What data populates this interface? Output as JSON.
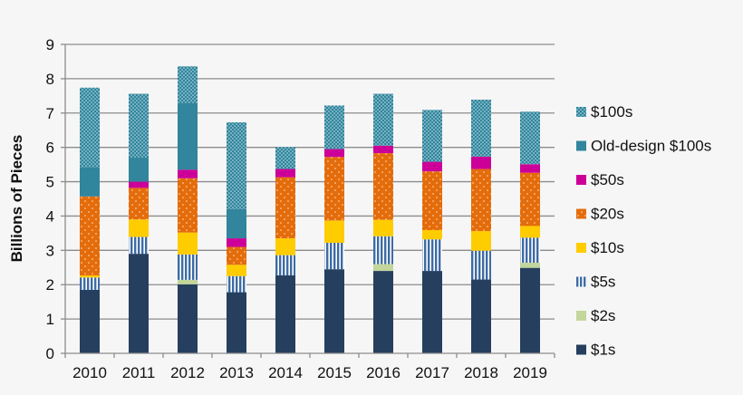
{
  "chart_data": {
    "type": "bar",
    "stacked": true,
    "title": "",
    "xlabel": "",
    "ylabel": "Billions of Pieces",
    "ylim": [
      0,
      9
    ],
    "yticks": [
      "0",
      "1",
      "2",
      "3",
      "4",
      "5",
      "6",
      "7",
      "8",
      "9"
    ],
    "grid": true,
    "legend_position": "right",
    "categories": [
      "2010",
      "2011",
      "2012",
      "2013",
      "2014",
      "2015",
      "2016",
      "2017",
      "2018",
      "2019"
    ],
    "series": [
      {
        "name": "$1s",
        "color": "#263f5e",
        "pattern": "solid",
        "values": [
          1.85,
          2.9,
          2.01,
          1.78,
          2.27,
          2.45,
          2.4,
          2.4,
          2.15,
          2.49
        ]
      },
      {
        "name": "$2s",
        "color": "#c3d69b",
        "pattern": "solid",
        "values": [
          0,
          0,
          0.13,
          0,
          0,
          0,
          0.2,
          0,
          0,
          0.15
        ]
      },
      {
        "name": "$5s",
        "color": "#3e6ba4",
        "pattern": "vertical-stripes",
        "values": [
          0.36,
          0.49,
          0.74,
          0.47,
          0.59,
          0.77,
          0.81,
          0.92,
          0.84,
          0.73
        ]
      },
      {
        "name": "$10s",
        "color": "#ffcc00",
        "pattern": "solid",
        "values": [
          0.06,
          0.51,
          0.64,
          0.33,
          0.49,
          0.65,
          0.48,
          0.27,
          0.57,
          0.34
        ]
      },
      {
        "name": "$20s",
        "color": "#e46c0a",
        "pattern": "dots",
        "values": [
          2.3,
          0.92,
          1.58,
          0.52,
          1.78,
          1.85,
          1.94,
          1.71,
          1.81,
          1.55
        ]
      },
      {
        "name": "$50s",
        "color": "#cc0099",
        "pattern": "solid",
        "values": [
          0,
          0.18,
          0.25,
          0.25,
          0.24,
          0.23,
          0.22,
          0.28,
          0.36,
          0.25
        ]
      },
      {
        "name": "Old-design $100s",
        "color": "#31859c",
        "pattern": "solid",
        "values": [
          0.85,
          0.7,
          1.95,
          0.85,
          0,
          0,
          0,
          0,
          0,
          0
        ]
      },
      {
        "name": "$100s",
        "color": "#31859c",
        "pattern": "dense-dots",
        "values": [
          2.32,
          1.86,
          1.06,
          2.53,
          0.64,
          1.27,
          1.51,
          1.51,
          1.66,
          1.53
        ]
      }
    ]
  }
}
